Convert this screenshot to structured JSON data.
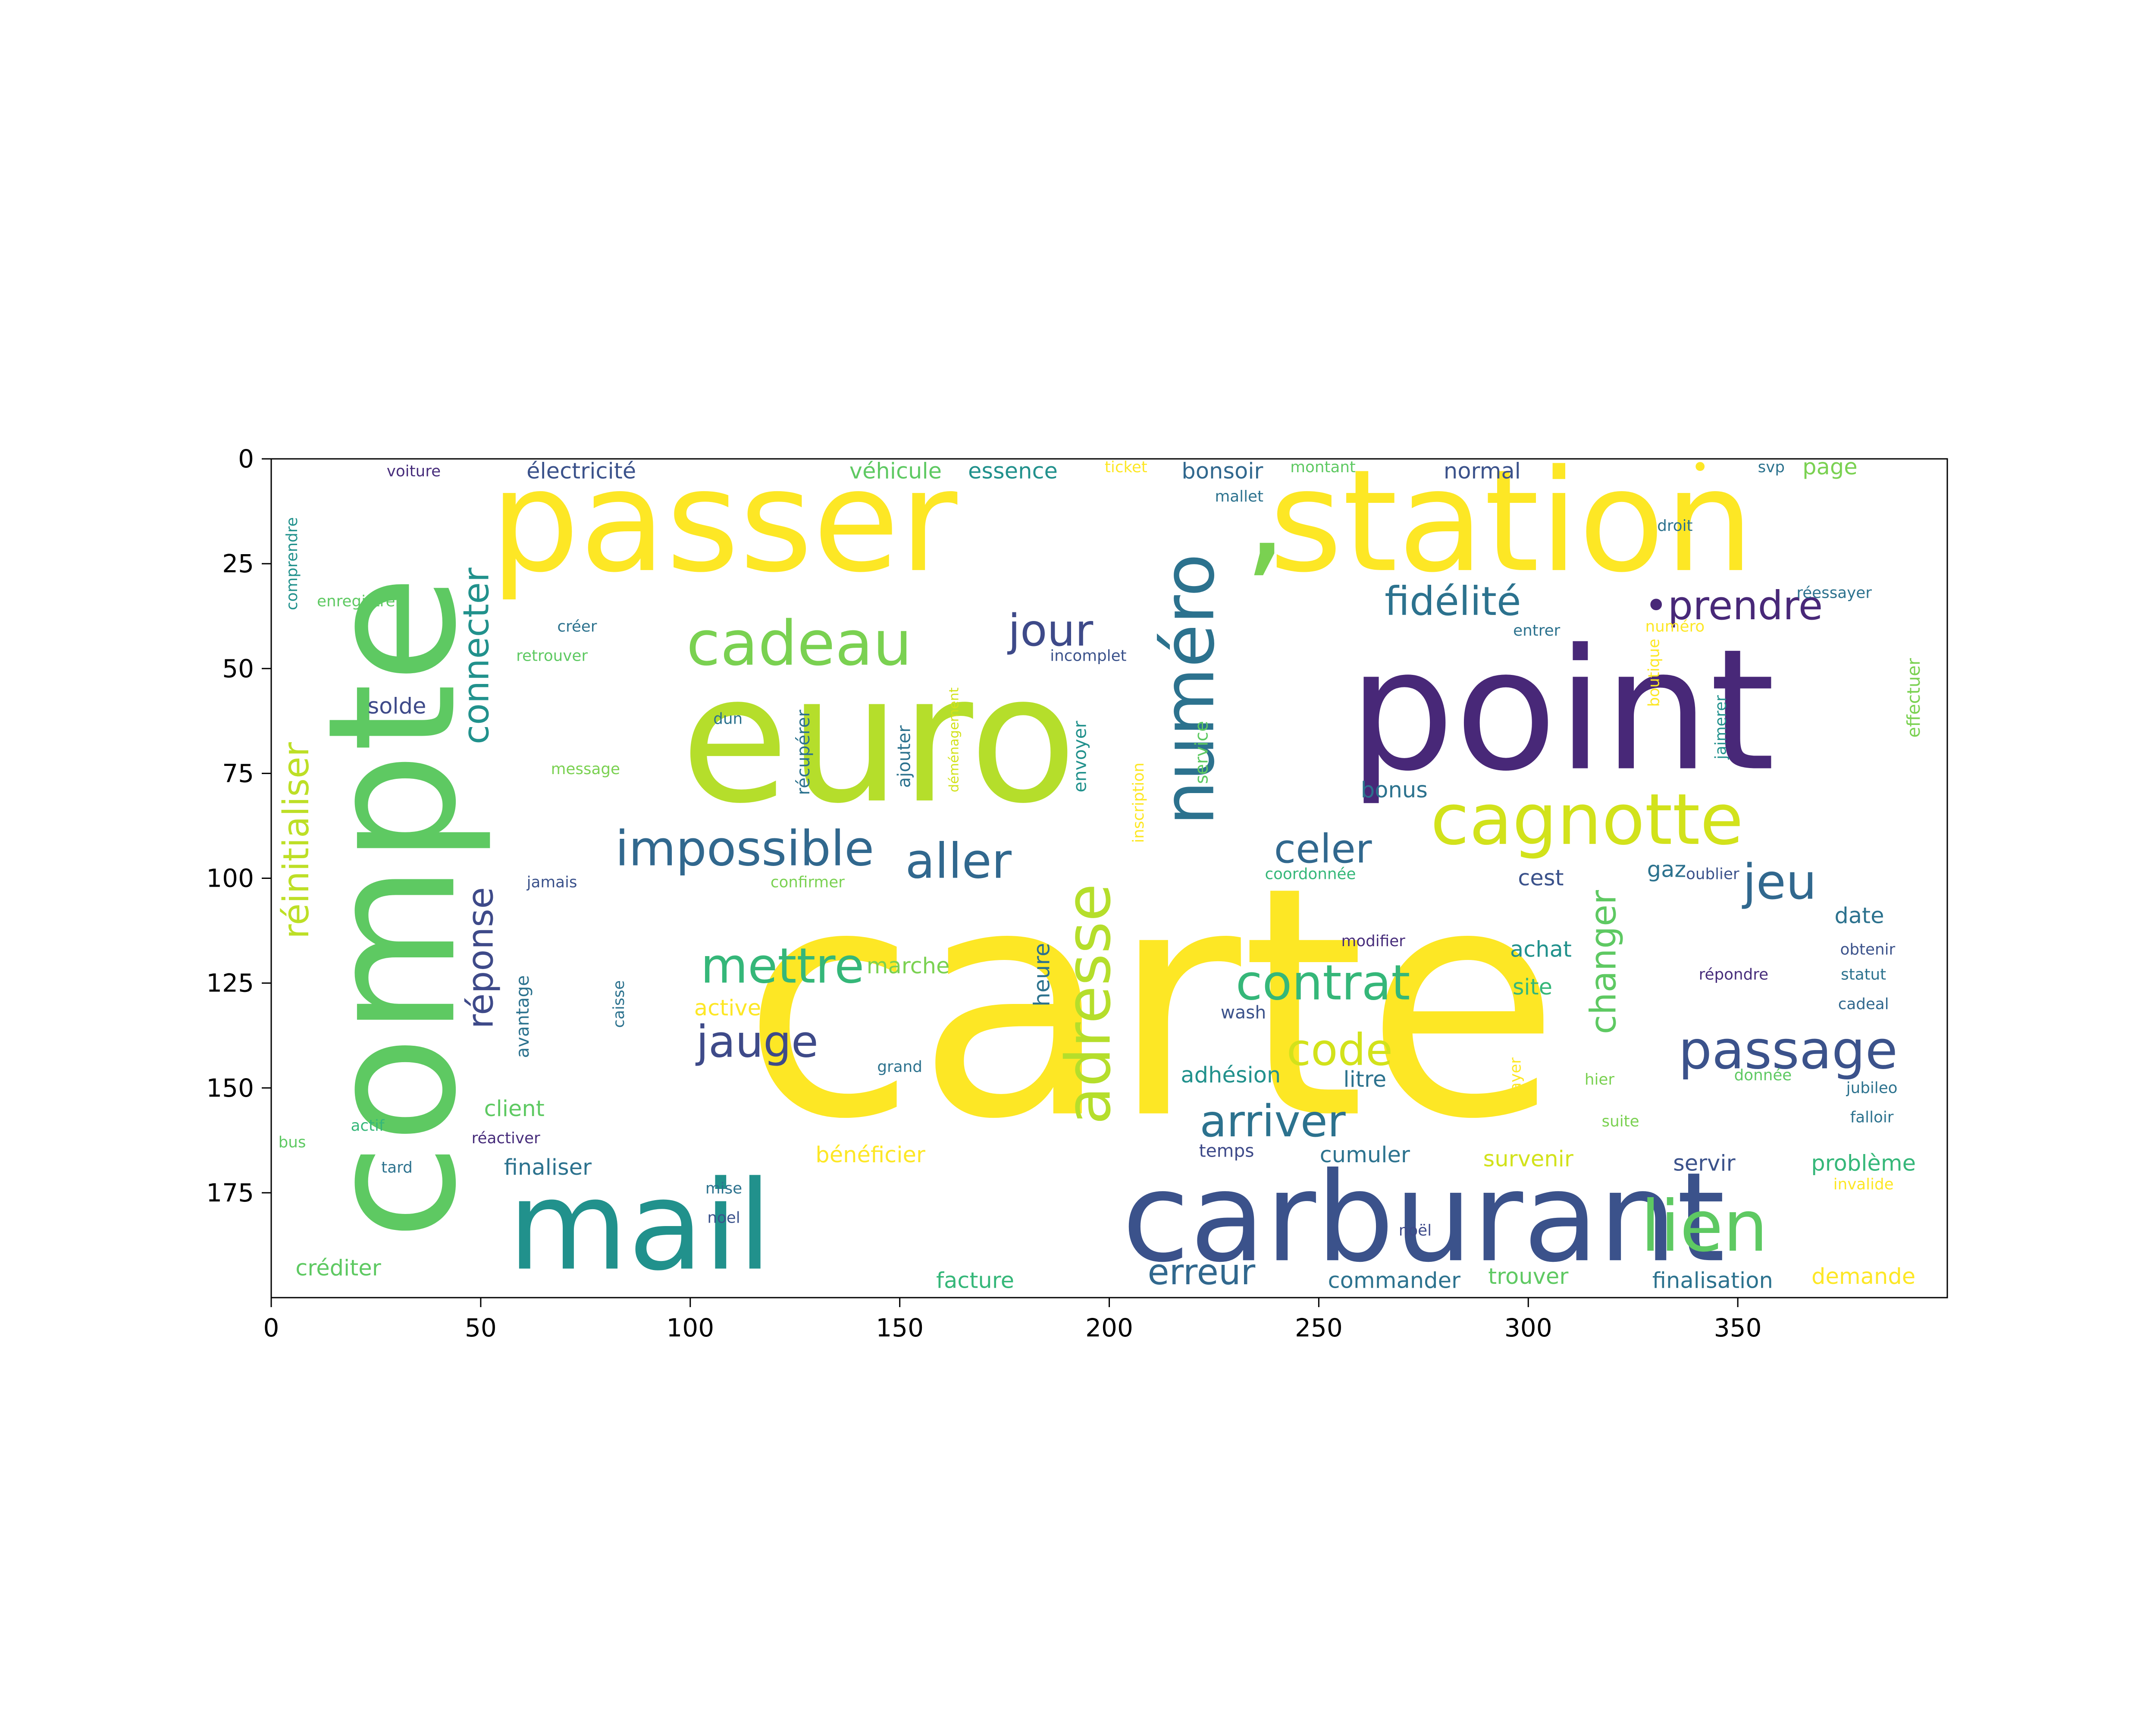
{
  "chart_data": {
    "type": "wordcloud",
    "xlim": [
      0,
      400
    ],
    "ylim": [
      200,
      0
    ],
    "x_ticks": [
      0,
      50,
      100,
      150,
      200,
      250,
      300,
      350
    ],
    "y_ticks": [
      0,
      25,
      50,
      75,
      100,
      125,
      150,
      175
    ],
    "words": [
      {
        "text": "carte",
        "x": 210,
        "y": 130,
        "size": 72,
        "color": "#fde725",
        "rotate": false
      },
      {
        "text": "euro",
        "x": 145,
        "y": 67,
        "size": 40,
        "color": "#b5de2b",
        "rotate": false
      },
      {
        "text": "point",
        "x": 308,
        "y": 60,
        "size": 38,
        "color": "#482878",
        "rotate": false
      },
      {
        "text": "compte",
        "x": 29,
        "y": 107,
        "size": 40,
        "color": "#5ec962",
        "rotate": true
      },
      {
        "text": "passer",
        "x": 108,
        "y": 15,
        "size": 32,
        "color": "#fde725",
        "rotate": false
      },
      {
        "text": "station",
        "x": 296,
        "y": 15,
        "size": 32,
        "color": "#fde725",
        "rotate": false
      },
      {
        "text": "’",
        "x": 237,
        "y": 33,
        "size": 32,
        "color": "#7ad151",
        "rotate": false
      },
      {
        "text": "carburant",
        "x": 275,
        "y": 181,
        "size": 28,
        "color": "#3b528b",
        "rotate": false
      },
      {
        "text": "mail",
        "x": 88,
        "y": 183,
        "size": 28,
        "color": "#21918c",
        "rotate": false
      },
      {
        "text": "cadeau",
        "x": 126,
        "y": 44,
        "size": 14,
        "color": "#7ad151",
        "rotate": false
      },
      {
        "text": "cagnotte",
        "x": 314,
        "y": 86,
        "size": 16,
        "color": "#d2e21b",
        "rotate": false
      },
      {
        "text": "numéro",
        "x": 219,
        "y": 55,
        "size": 16,
        "color": "#2c728e",
        "rotate": true
      },
      {
        "text": "adresse",
        "x": 195,
        "y": 130,
        "size": 14,
        "color": "#b5de2b",
        "rotate": true
      },
      {
        "text": "lien",
        "x": 342,
        "y": 183,
        "size": 16,
        "color": "#5ec962",
        "rotate": false
      },
      {
        "text": "fidélité",
        "x": 282,
        "y": 34,
        "size": 9,
        "color": "#2c728e",
        "rotate": false
      },
      {
        "text": "•prendre",
        "x": 349,
        "y": 35,
        "size": 9,
        "color": "#482878",
        "rotate": false
      },
      {
        "text": "•",
        "x": 341,
        "y": 2,
        "size": 7,
        "color": "#fde725",
        "rotate": false
      },
      {
        "text": "jour",
        "x": 186,
        "y": 41,
        "size": 10,
        "color": "#3e4a89",
        "rotate": false
      },
      {
        "text": "impossible",
        "x": 113,
        "y": 93,
        "size": 11,
        "color": "#31688e",
        "rotate": false
      },
      {
        "text": "aller",
        "x": 164,
        "y": 96,
        "size": 11,
        "color": "#31688e",
        "rotate": false
      },
      {
        "text": "mettre",
        "x": 122,
        "y": 121,
        "size": 11,
        "color": "#35b779",
        "rotate": false
      },
      {
        "text": "jauge",
        "x": 116,
        "y": 139,
        "size": 10,
        "color": "#3e4a89",
        "rotate": false
      },
      {
        "text": "connecter",
        "x": 49,
        "y": 47,
        "size": 8,
        "color": "#21918c",
        "rotate": true
      },
      {
        "text": "réinitialiser",
        "x": 6,
        "y": 91,
        "size": 8,
        "color": "#bddf26",
        "rotate": true
      },
      {
        "text": "réponse",
        "x": 50,
        "y": 119,
        "size": 8,
        "color": "#3e4a89",
        "rotate": true
      },
      {
        "text": "celer",
        "x": 251,
        "y": 93,
        "size": 9,
        "color": "#31688e",
        "rotate": false
      },
      {
        "text": "contrat",
        "x": 251,
        "y": 125,
        "size": 11,
        "color": "#35b779",
        "rotate": false
      },
      {
        "text": "code",
        "x": 255,
        "y": 141,
        "size": 10,
        "color": "#d2e21b",
        "rotate": false
      },
      {
        "text": "arriver",
        "x": 239,
        "y": 158,
        "size": 10,
        "color": "#2c728e",
        "rotate": false
      },
      {
        "text": "erreur",
        "x": 222,
        "y": 194,
        "size": 8,
        "color": "#31688e",
        "rotate": false
      },
      {
        "text": "passage",
        "x": 362,
        "y": 141,
        "size": 12,
        "color": "#3b528b",
        "rotate": false
      },
      {
        "text": "jeu",
        "x": 360,
        "y": 101,
        "size": 11,
        "color": "#31688e",
        "rotate": false
      },
      {
        "text": "changer",
        "x": 318,
        "y": 120,
        "size": 8,
        "color": "#5ec962",
        "rotate": true
      },
      {
        "text": "électricité",
        "x": 74,
        "y": 3,
        "size": 5,
        "color": "#3b528b",
        "rotate": false
      },
      {
        "text": "voiture",
        "x": 34,
        "y": 3,
        "size": 3.5,
        "color": "#472d7b",
        "rotate": false
      },
      {
        "text": "véhicule",
        "x": 149,
        "y": 3,
        "size": 5,
        "color": "#5ec962",
        "rotate": false
      },
      {
        "text": "essence",
        "x": 177,
        "y": 3,
        "size": 5,
        "color": "#21918c",
        "rotate": false
      },
      {
        "text": "ticket",
        "x": 204,
        "y": 2,
        "size": 3.5,
        "color": "#fde725",
        "rotate": false
      },
      {
        "text": "bonsoir",
        "x": 227,
        "y": 3,
        "size": 5,
        "color": "#31688e",
        "rotate": false
      },
      {
        "text": "montant",
        "x": 251,
        "y": 2,
        "size": 3.5,
        "color": "#5ec962",
        "rotate": false
      },
      {
        "text": "mallet",
        "x": 231,
        "y": 9,
        "size": 3.5,
        "color": "#2c728e",
        "rotate": false
      },
      {
        "text": "normal",
        "x": 289,
        "y": 3,
        "size": 5,
        "color": "#3b528b",
        "rotate": false
      },
      {
        "text": "svp",
        "x": 358,
        "y": 2,
        "size": 3.5,
        "color": "#2c728e",
        "rotate": false
      },
      {
        "text": "page",
        "x": 372,
        "y": 2,
        "size": 5,
        "color": "#7ad151",
        "rotate": false
      },
      {
        "text": "droit",
        "x": 335,
        "y": 16,
        "size": 3.5,
        "color": "#2c728e",
        "rotate": false
      },
      {
        "text": "réessayer",
        "x": 373,
        "y": 32,
        "size": 3.5,
        "color": "#2c728e",
        "rotate": false
      },
      {
        "text": "entrer",
        "x": 302,
        "y": 41,
        "size": 3.5,
        "color": "#2c728e",
        "rotate": false
      },
      {
        "text": "numéro",
        "x": 335,
        "y": 40,
        "size": 3.5,
        "color": "#fde725",
        "rotate": false
      },
      {
        "text": "incomplet",
        "x": 195,
        "y": 47,
        "size": 3.5,
        "color": "#3b528b",
        "rotate": false
      },
      {
        "text": "comprendre",
        "x": 5,
        "y": 25,
        "size": 3.5,
        "color": "#21918c",
        "rotate": true
      },
      {
        "text": "enregistrer",
        "x": 21,
        "y": 34,
        "size": 3.5,
        "color": "#5ec962",
        "rotate": false
      },
      {
        "text": "créer",
        "x": 73,
        "y": 40,
        "size": 3.5,
        "color": "#2c728e",
        "rotate": false
      },
      {
        "text": "retrouver",
        "x": 67,
        "y": 47,
        "size": 3.5,
        "color": "#5ec962",
        "rotate": false
      },
      {
        "text": "solde",
        "x": 30,
        "y": 59,
        "size": 5,
        "color": "#3e4a89",
        "rotate": false
      },
      {
        "text": "dun",
        "x": 109,
        "y": 62,
        "size": 3.5,
        "color": "#2c728e",
        "rotate": false
      },
      {
        "text": "message",
        "x": 75,
        "y": 74,
        "size": 3.5,
        "color": "#7ad151",
        "rotate": false
      },
      {
        "text": "récupérer",
        "x": 127,
        "y": 70,
        "size": 4,
        "color": "#2c728e",
        "rotate": true
      },
      {
        "text": "ajouter",
        "x": 151,
        "y": 71,
        "size": 4,
        "color": "#2c728e",
        "rotate": true
      },
      {
        "text": "déménagement",
        "x": 163,
        "y": 67,
        "size": 3,
        "color": "#d2e21b",
        "rotate": true
      },
      {
        "text": "envoyer",
        "x": 193,
        "y": 71,
        "size": 4,
        "color": "#21918c",
        "rotate": true
      },
      {
        "text": "inscription",
        "x": 207,
        "y": 82,
        "size": 3.5,
        "color": "#fde725",
        "rotate": true
      },
      {
        "text": "service",
        "x": 222,
        "y": 70,
        "size": 4,
        "color": "#5ec962",
        "rotate": true
      },
      {
        "text": "bonus",
        "x": 268,
        "y": 79,
        "size": 5,
        "color": "#2c728e",
        "rotate": false
      },
      {
        "text": "boutique",
        "x": 330,
        "y": 51,
        "size": 3.5,
        "color": "#fde725",
        "rotate": true
      },
      {
        "text": "jaimerer",
        "x": 346,
        "y": 64,
        "size": 3.5,
        "color": "#21918c",
        "rotate": true
      },
      {
        "text": "effectuer",
        "x": 392,
        "y": 57,
        "size": 4,
        "color": "#7ad151",
        "rotate": true
      },
      {
        "text": "jamais",
        "x": 67,
        "y": 101,
        "size": 3.5,
        "color": "#3b528b",
        "rotate": false
      },
      {
        "text": "confirmer",
        "x": 128,
        "y": 101,
        "size": 3.5,
        "color": "#7ad151",
        "rotate": false
      },
      {
        "text": "coordonnée",
        "x": 248,
        "y": 99,
        "size": 3.5,
        "color": "#35b779",
        "rotate": false
      },
      {
        "text": "cest",
        "x": 303,
        "y": 100,
        "size": 5,
        "color": "#3b528b",
        "rotate": false
      },
      {
        "text": "gaz",
        "x": 333,
        "y": 98,
        "size": 5,
        "color": "#2c728e",
        "rotate": false
      },
      {
        "text": "oublier",
        "x": 344,
        "y": 99,
        "size": 3.5,
        "color": "#3b528b",
        "rotate": false
      },
      {
        "text": "date",
        "x": 379,
        "y": 109,
        "size": 5,
        "color": "#2c728e",
        "rotate": false
      },
      {
        "text": "obtenir",
        "x": 381,
        "y": 117,
        "size": 3.5,
        "color": "#3b528b",
        "rotate": false
      },
      {
        "text": "statut",
        "x": 380,
        "y": 123,
        "size": 3.5,
        "color": "#2c728e",
        "rotate": false
      },
      {
        "text": "modifier",
        "x": 263,
        "y": 115,
        "size": 3.5,
        "color": "#472d7b",
        "rotate": false
      },
      {
        "text": "achat",
        "x": 303,
        "y": 117,
        "size": 5,
        "color": "#21918c",
        "rotate": false
      },
      {
        "text": "répondre",
        "x": 349,
        "y": 123,
        "size": 3.5,
        "color": "#472d7b",
        "rotate": false
      },
      {
        "text": "site",
        "x": 301,
        "y": 126,
        "size": 5,
        "color": "#35b779",
        "rotate": false
      },
      {
        "text": "cadeal",
        "x": 380,
        "y": 130,
        "size": 3.5,
        "color": "#31688e",
        "rotate": false
      },
      {
        "text": "marche",
        "x": 152,
        "y": 121,
        "size": 5,
        "color": "#7ad151",
        "rotate": false
      },
      {
        "text": "activer",
        "x": 110,
        "y": 131,
        "size": 5,
        "color": "#fde725",
        "rotate": false
      },
      {
        "text": "heure",
        "x": 184,
        "y": 123,
        "size": 5,
        "color": "#2c728e",
        "rotate": true
      },
      {
        "text": "wash",
        "x": 232,
        "y": 132,
        "size": 4,
        "color": "#3b528b",
        "rotate": false
      },
      {
        "text": "caisse",
        "x": 83,
        "y": 130,
        "size": 3.5,
        "color": "#2c728e",
        "rotate": true
      },
      {
        "text": "avantage",
        "x": 60,
        "y": 133,
        "size": 4,
        "color": "#2c728e",
        "rotate": true
      },
      {
        "text": "grand",
        "x": 150,
        "y": 145,
        "size": 3.5,
        "color": "#2c728e",
        "rotate": false
      },
      {
        "text": "adhésion",
        "x": 229,
        "y": 147,
        "size": 5,
        "color": "#21918c",
        "rotate": false
      },
      {
        "text": "litre",
        "x": 261,
        "y": 148,
        "size": 5,
        "color": "#2c728e",
        "rotate": false
      },
      {
        "text": "payer",
        "x": 297,
        "y": 148,
        "size": 3.5,
        "color": "#fde725",
        "rotate": true
      },
      {
        "text": "hier",
        "x": 317,
        "y": 148,
        "size": 3.5,
        "color": "#7ad151",
        "rotate": false
      },
      {
        "text": "donnée",
        "x": 356,
        "y": 147,
        "size": 3.5,
        "color": "#5ec962",
        "rotate": false
      },
      {
        "text": "jubileo",
        "x": 382,
        "y": 150,
        "size": 3.5,
        "color": "#2c728e",
        "rotate": false
      },
      {
        "text": "falloir",
        "x": 382,
        "y": 157,
        "size": 3.5,
        "color": "#2c728e",
        "rotate": false
      },
      {
        "text": "suite",
        "x": 322,
        "y": 158,
        "size": 3.5,
        "color": "#7ad151",
        "rotate": false
      },
      {
        "text": "client",
        "x": 58,
        "y": 155,
        "size": 5,
        "color": "#5ec962",
        "rotate": false
      },
      {
        "text": "actif",
        "x": 23,
        "y": 159,
        "size": 3.5,
        "color": "#35b779",
        "rotate": false
      },
      {
        "text": "réactiver",
        "x": 56,
        "y": 162,
        "size": 3.5,
        "color": "#472d7b",
        "rotate": false
      },
      {
        "text": "bus",
        "x": 5,
        "y": 163,
        "size": 3.5,
        "color": "#5ec962",
        "rotate": false
      },
      {
        "text": "bénéficier",
        "x": 143,
        "y": 166,
        "size": 5,
        "color": "#fde725",
        "rotate": false
      },
      {
        "text": "temps",
        "x": 228,
        "y": 165,
        "size": 4,
        "color": "#3e4a89",
        "rotate": false
      },
      {
        "text": "cumuler",
        "x": 261,
        "y": 166,
        "size": 5,
        "color": "#2c728e",
        "rotate": false
      },
      {
        "text": "survenir",
        "x": 300,
        "y": 167,
        "size": 5,
        "color": "#d2e21b",
        "rotate": false
      },
      {
        "text": "servir",
        "x": 342,
        "y": 168,
        "size": 5,
        "color": "#3b528b",
        "rotate": false
      },
      {
        "text": "problème",
        "x": 380,
        "y": 168,
        "size": 5,
        "color": "#35b779",
        "rotate": false
      },
      {
        "text": "invalide",
        "x": 380,
        "y": 173,
        "size": 3.5,
        "color": "#fde725",
        "rotate": false
      },
      {
        "text": "tard",
        "x": 30,
        "y": 169,
        "size": 3.5,
        "color": "#2c728e",
        "rotate": false
      },
      {
        "text": "finaliser",
        "x": 66,
        "y": 169,
        "size": 5,
        "color": "#2c728e",
        "rotate": false
      },
      {
        "text": "mise",
        "x": 108,
        "y": 174,
        "size": 3.5,
        "color": "#2c728e",
        "rotate": false
      },
      {
        "text": "noel",
        "x": 108,
        "y": 181,
        "size": 3.5,
        "color": "#3b528b",
        "rotate": false
      },
      {
        "text": "noël",
        "x": 273,
        "y": 184,
        "size": 3.5,
        "color": "#3e4a89",
        "rotate": false
      },
      {
        "text": "créditer",
        "x": 16,
        "y": 193,
        "size": 5,
        "color": "#5ec962",
        "rotate": false
      },
      {
        "text": "facture",
        "x": 168,
        "y": 196,
        "size": 5,
        "color": "#35b779",
        "rotate": false
      },
      {
        "text": "commander",
        "x": 268,
        "y": 196,
        "size": 5,
        "color": "#2c728e",
        "rotate": false
      },
      {
        "text": "trouver",
        "x": 300,
        "y": 195,
        "size": 5,
        "color": "#5ec962",
        "rotate": false
      },
      {
        "text": "finalisation",
        "x": 344,
        "y": 196,
        "size": 5,
        "color": "#2c728e",
        "rotate": false
      },
      {
        "text": "demande",
        "x": 380,
        "y": 195,
        "size": 5,
        "color": "#fde725",
        "rotate": false
      }
    ]
  }
}
